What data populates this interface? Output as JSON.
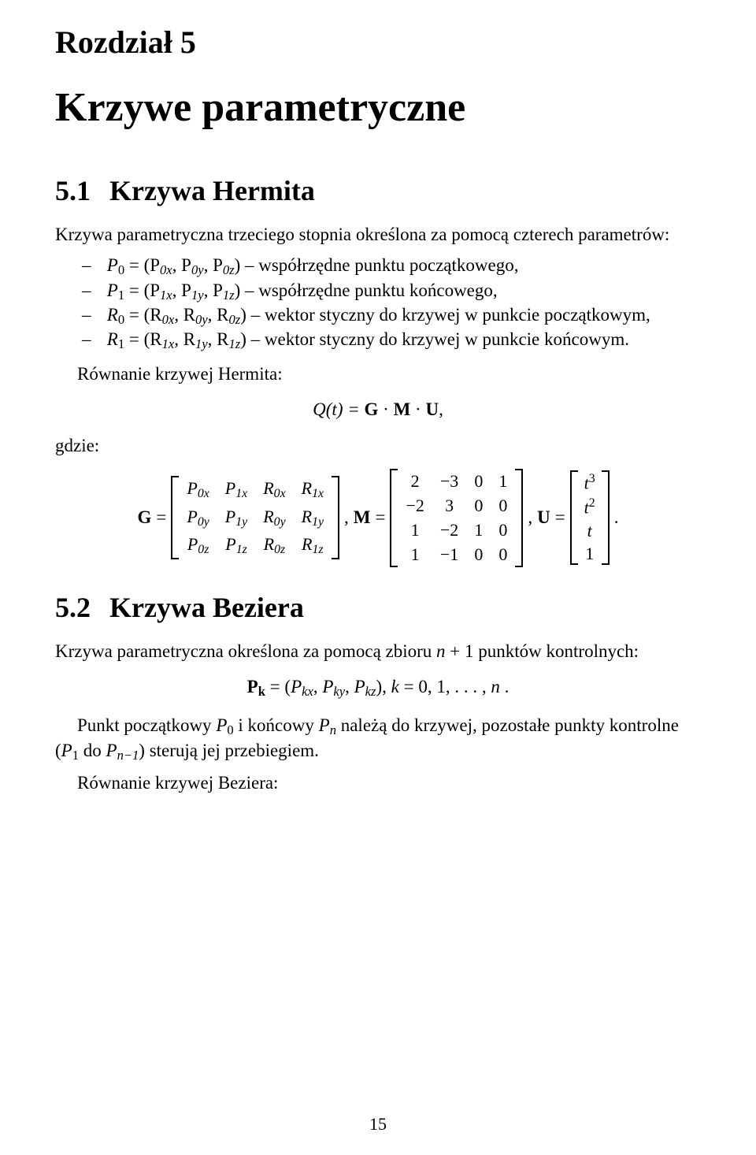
{
  "chapter_label": "Rozdział 5",
  "chapter_title": "Krzywe parametryczne",
  "s1": {
    "num": "5.1",
    "title": "Krzywa Hermita",
    "intro": "Krzywa parametryczna trzeciego stopnia określona za pomocą czterech parametrów:",
    "items": {
      "a_pre": "P",
      "a_idx": "0",
      "a_eq": " = (P",
      "a_0x": "0x",
      "a_c1": ", P",
      "a_0y": "0y",
      "a_c2": ", P",
      "a_0z": "0z",
      "a_after": ") – współrzędne punktu początkowego,",
      "b_pre": "P",
      "b_idx": "1",
      "b_eq": " = (P",
      "b_1x": "1x",
      "b_c1": ", P",
      "b_1y": "1y",
      "b_c2": ", P",
      "b_1z": "1z",
      "b_after": ") – współrzędne punktu końcowego,",
      "c_pre": "R",
      "c_idx": "0",
      "c_eq": " = (R",
      "c_0x": "0x",
      "c_c1": ", R",
      "c_0y": "0y",
      "c_c2": ", R",
      "c_0z": "0z",
      "c_after": ") – wektor styczny do krzywej w punkcie początkowym,",
      "d_pre": "R",
      "d_idx": "1",
      "d_eq": " = (R",
      "d_1x": "1x",
      "d_c1": ", R",
      "d_1y": "1y",
      "d_c2": ", R",
      "d_1z": "1z",
      "d_after": ") – wektor styczny do krzywej w punkcie końcowym."
    },
    "eq_label": "Równanie krzywej Hermita:",
    "eq_qt": "Q(t) = ",
    "eq_g": "G",
    "eq_dot1": " · ",
    "eq_m": "M",
    "eq_dot2": " · ",
    "eq_u": "U",
    "eq_comma": ",",
    "where": "gdzie:",
    "row": {
      "G": "G",
      "eq": " = ",
      "comma1": ", ",
      "M": "M",
      "comma2": ", ",
      "U": "U",
      "period": "."
    },
    "Gmat": {
      "r0": {
        "c0p": "P",
        "c0s": "0x",
        "c1p": "P",
        "c1s": "1x",
        "c2p": "R",
        "c2s": "0x",
        "c3p": "R",
        "c3s": "1x"
      },
      "r1": {
        "c0p": "P",
        "c0s": "0y",
        "c1p": "P",
        "c1s": "1y",
        "c2p": "R",
        "c2s": "0y",
        "c3p": "R",
        "c3s": "1y"
      },
      "r2": {
        "c0p": "P",
        "c0s": "0z",
        "c1p": "P",
        "c1s": "1z",
        "c2p": "R",
        "c2s": "0z",
        "c3p": "R",
        "c3s": "1z"
      }
    },
    "Mmat": {
      "r0": {
        "c0": "2",
        "c1": "−3",
        "c2": "0",
        "c3": "1"
      },
      "r1": {
        "c0": "−2",
        "c1": "3",
        "c2": "0",
        "c3": "0"
      },
      "r2": {
        "c0": "1",
        "c1": "−2",
        "c2": "1",
        "c3": "0"
      },
      "r3": {
        "c0": "1",
        "c1": "−1",
        "c2": "0",
        "c3": "0"
      }
    },
    "Uvec": {
      "r0b": "t",
      "r0e": "3",
      "r1b": "t",
      "r1e": "2",
      "r2": "t",
      "r3": "1"
    }
  },
  "s2": {
    "num": "5.2",
    "title": "Krzywa Beziera",
    "intro_pre": "Krzywa parametryczna określona za pomocą zbioru ",
    "intro_n": "n",
    "intro_plus": " + 1",
    "intro_post": " punktów kontrolnych:",
    "pk": {
      "Pk": "P",
      "ksub": "k",
      "eq": " = (",
      "p1": "P",
      "s1": "kx",
      "c1": ", ",
      "p2": "P",
      "s2": "ky",
      "c2": ", ",
      "p3": "P",
      "s3": "kz",
      "close": "),   ",
      "kvar": "k",
      "range": " = 0, 1, . . . , ",
      "nvar": "n",
      "tail": " ."
    },
    "para_a": "Punkt początkowy ",
    "para_P0": "P",
    "para_P0s": "0",
    "para_b": " i końcowy ",
    "para_Pn": "P",
    "para_Pns": "n",
    "para_c": " należą do krzywej, pozostałe punkty kontrolne (",
    "para_P1": "P",
    "para_P1s": "1",
    "para_d": " do ",
    "para_Pn1": "P",
    "para_Pn1s": "n−1",
    "para_e": ") sterują jej przebiegiem.",
    "bezier_eq_label": "Równanie krzywej Beziera:"
  },
  "page_number": "15"
}
